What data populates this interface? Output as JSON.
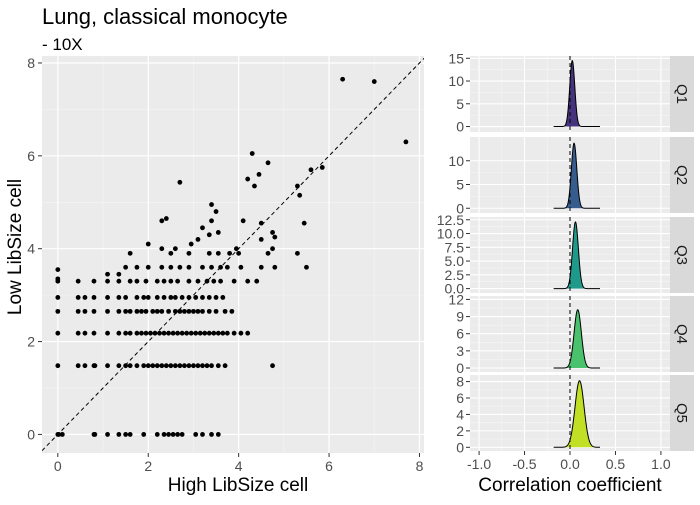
{
  "title": "Lung, classical monocyte",
  "subtitle": "- 10X",
  "chart_data": [
    {
      "type": "scatter",
      "xlabel": "High LibSize cell",
      "ylabel": "Low LibSize cell",
      "xlim": [
        -0.35,
        8.1
      ],
      "ylim": [
        -0.4,
        8.15
      ],
      "xticks": [
        0,
        2,
        4,
        6,
        8
      ],
      "yticks": [
        0,
        2,
        4,
        6,
        8
      ],
      "reference_line": "y = x (dashed)",
      "grid": true,
      "points": [
        [
          0,
          0
        ],
        [
          0.02,
          0
        ],
        [
          0.1,
          0
        ],
        [
          0.8,
          0
        ],
        [
          0.82,
          0
        ],
        [
          1.1,
          0
        ],
        [
          1.35,
          0
        ],
        [
          1.5,
          0
        ],
        [
          1.6,
          0
        ],
        [
          1.9,
          0
        ],
        [
          2.2,
          0
        ],
        [
          2.35,
          0
        ],
        [
          2.45,
          0
        ],
        [
          2.55,
          0
        ],
        [
          2.65,
          0
        ],
        [
          2.75,
          0
        ],
        [
          3.05,
          0
        ],
        [
          3.2,
          0
        ],
        [
          3.4,
          0
        ],
        [
          3.55,
          0
        ],
        [
          0,
          1.48
        ],
        [
          0.45,
          1.48
        ],
        [
          0.6,
          1.48
        ],
        [
          0.8,
          1.48
        ],
        [
          0.82,
          1.48
        ],
        [
          1.1,
          1.48
        ],
        [
          1.35,
          1.48
        ],
        [
          1.5,
          1.48
        ],
        [
          1.6,
          1.48
        ],
        [
          1.75,
          1.48
        ],
        [
          1.9,
          1.48
        ],
        [
          2.0,
          1.48
        ],
        [
          2.1,
          1.48
        ],
        [
          2.2,
          1.48
        ],
        [
          2.3,
          1.48
        ],
        [
          2.4,
          1.48
        ],
        [
          2.5,
          1.48
        ],
        [
          2.6,
          1.48
        ],
        [
          2.7,
          1.48
        ],
        [
          2.8,
          1.48
        ],
        [
          2.9,
          1.48
        ],
        [
          3.0,
          1.48
        ],
        [
          3.1,
          1.48
        ],
        [
          3.2,
          1.48
        ],
        [
          3.3,
          1.48
        ],
        [
          3.4,
          1.48
        ],
        [
          3.55,
          1.48
        ],
        [
          3.7,
          1.48
        ],
        [
          4.75,
          1.48
        ],
        [
          0,
          2.18
        ],
        [
          0.45,
          2.18
        ],
        [
          0.6,
          2.18
        ],
        [
          0.8,
          2.18
        ],
        [
          1.1,
          2.18
        ],
        [
          1.35,
          2.18
        ],
        [
          1.5,
          2.18
        ],
        [
          1.6,
          2.18
        ],
        [
          1.75,
          2.18
        ],
        [
          1.85,
          2.18
        ],
        [
          1.95,
          2.18
        ],
        [
          2.05,
          2.18
        ],
        [
          2.15,
          2.18
        ],
        [
          2.25,
          2.18
        ],
        [
          2.35,
          2.18
        ],
        [
          2.45,
          2.18
        ],
        [
          2.55,
          2.18
        ],
        [
          2.65,
          2.18
        ],
        [
          2.75,
          2.18
        ],
        [
          2.85,
          2.18
        ],
        [
          2.95,
          2.18
        ],
        [
          3.05,
          2.18
        ],
        [
          3.15,
          2.18
        ],
        [
          3.25,
          2.18
        ],
        [
          3.35,
          2.18
        ],
        [
          3.45,
          2.18
        ],
        [
          3.55,
          2.18
        ],
        [
          3.65,
          2.18
        ],
        [
          3.75,
          2.18
        ],
        [
          3.9,
          2.18
        ],
        [
          4.05,
          2.18
        ],
        [
          4.2,
          2.18
        ],
        [
          0,
          2.65
        ],
        [
          0.45,
          2.65
        ],
        [
          0.6,
          2.65
        ],
        [
          0.8,
          2.65
        ],
        [
          1.1,
          2.65
        ],
        [
          1.35,
          2.65
        ],
        [
          1.5,
          2.65
        ],
        [
          1.6,
          2.65
        ],
        [
          1.75,
          2.65
        ],
        [
          1.85,
          2.65
        ],
        [
          1.95,
          2.65
        ],
        [
          2.1,
          2.65
        ],
        [
          2.2,
          2.65
        ],
        [
          2.3,
          2.65
        ],
        [
          2.45,
          2.65
        ],
        [
          2.6,
          2.65
        ],
        [
          2.7,
          2.65
        ],
        [
          2.8,
          2.65
        ],
        [
          2.9,
          2.65
        ],
        [
          3.0,
          2.65
        ],
        [
          3.1,
          2.65
        ],
        [
          3.2,
          2.65
        ],
        [
          3.35,
          2.65
        ],
        [
          3.5,
          2.65
        ],
        [
          3.7,
          2.65
        ],
        [
          3.85,
          2.65
        ],
        [
          0,
          2.95
        ],
        [
          0.45,
          2.95
        ],
        [
          0.6,
          2.95
        ],
        [
          0.8,
          2.95
        ],
        [
          1.1,
          2.95
        ],
        [
          1.35,
          2.95
        ],
        [
          1.5,
          2.95
        ],
        [
          1.75,
          2.95
        ],
        [
          1.9,
          2.95
        ],
        [
          2.0,
          2.95
        ],
        [
          2.2,
          2.95
        ],
        [
          2.35,
          2.95
        ],
        [
          2.5,
          2.95
        ],
        [
          2.6,
          2.95
        ],
        [
          2.75,
          2.95
        ],
        [
          2.9,
          2.95
        ],
        [
          3.05,
          2.95
        ],
        [
          3.2,
          2.95
        ],
        [
          3.35,
          2.95
        ],
        [
          3.5,
          2.95
        ],
        [
          3.65,
          2.95
        ],
        [
          0,
          3.3
        ],
        [
          0.45,
          3.3
        ],
        [
          0.8,
          3.3
        ],
        [
          1.1,
          3.3
        ],
        [
          1.35,
          3.3
        ],
        [
          1.6,
          3.3
        ],
        [
          1.75,
          3.3
        ],
        [
          1.95,
          3.3
        ],
        [
          2.2,
          3.3
        ],
        [
          2.35,
          3.3
        ],
        [
          2.5,
          3.3
        ],
        [
          2.65,
          3.3
        ],
        [
          2.9,
          3.3
        ],
        [
          3.1,
          3.3
        ],
        [
          3.3,
          3.3
        ],
        [
          3.45,
          3.3
        ],
        [
          3.6,
          3.3
        ],
        [
          3.9,
          3.3
        ],
        [
          4.2,
          3.3
        ],
        [
          4.4,
          3.3
        ],
        [
          0,
          3.55
        ],
        [
          0,
          3.35
        ],
        [
          1.1,
          3.45
        ],
        [
          1.35,
          3.45
        ],
        [
          1.5,
          3.6
        ],
        [
          1.75,
          3.6
        ],
        [
          2.0,
          3.6
        ],
        [
          2.3,
          3.6
        ],
        [
          2.5,
          3.6
        ],
        [
          2.7,
          3.6
        ],
        [
          2.9,
          3.6
        ],
        [
          3.2,
          3.6
        ],
        [
          3.4,
          3.6
        ],
        [
          3.6,
          3.6
        ],
        [
          3.75,
          3.6
        ],
        [
          4.05,
          3.6
        ],
        [
          4.5,
          3.6
        ],
        [
          4.8,
          3.6
        ],
        [
          5.5,
          3.6
        ],
        [
          1.6,
          3.9
        ],
        [
          2.5,
          3.9
        ],
        [
          2.9,
          3.9
        ],
        [
          3.35,
          3.9
        ],
        [
          3.55,
          3.9
        ],
        [
          3.8,
          3.9
        ],
        [
          4.0,
          3.9
        ],
        [
          4.65,
          3.9
        ],
        [
          5.3,
          3.9
        ],
        [
          2.0,
          4.1
        ],
        [
          2.3,
          4.0
        ],
        [
          2.6,
          4.0
        ],
        [
          2.95,
          4.1
        ],
        [
          3.1,
          4.2
        ],
        [
          3.35,
          4.3
        ],
        [
          3.55,
          4.35
        ],
        [
          3.95,
          4.0
        ],
        [
          4.5,
          4.2
        ],
        [
          4.75,
          4.0
        ],
        [
          4.8,
          4.25
        ],
        [
          2.3,
          4.6
        ],
        [
          2.4,
          4.65
        ],
        [
          3.2,
          4.45
        ],
        [
          3.4,
          4.6
        ],
        [
          3.5,
          4.8
        ],
        [
          4.1,
          4.6
        ],
        [
          4.5,
          4.55
        ],
        [
          4.75,
          4.35
        ],
        [
          3.4,
          4.95
        ],
        [
          5.45,
          4.55
        ],
        [
          5.35,
          5.15
        ],
        [
          4.45,
          5.6
        ],
        [
          4.3,
          6.05
        ],
        [
          4.2,
          5.5
        ],
        [
          4.35,
          5.35
        ],
        [
          5.3,
          5.35
        ],
        [
          4.65,
          5.85
        ],
        [
          5.6,
          5.7
        ],
        [
          5.85,
          5.75
        ],
        [
          2.7,
          5.43
        ],
        [
          6.3,
          7.65
        ],
        [
          7.0,
          7.6
        ],
        [
          7.7,
          6.3
        ]
      ]
    },
    {
      "type": "area",
      "subtype": "density",
      "xlabel": "Correlation coefficient",
      "xlim": [
        -1.1,
        1.1
      ],
      "xticks": [
        -1.0,
        -0.5,
        0.0,
        0.5,
        1.0
      ],
      "xtick_labels": [
        "-1.0",
        "-0.5",
        "0.0",
        "0.5",
        "1.0"
      ],
      "reference_line": "x = 0 (dashed)",
      "panels": [
        {
          "name": "Q1",
          "color": "#46337e",
          "mean": 0.025,
          "sd": 0.028,
          "peak": 14.5,
          "ylim": [
            -1.2,
            15.5
          ],
          "yticks": [
            0,
            5,
            10,
            15
          ],
          "ytick_labels": [
            "0",
            "5",
            "10",
            "15"
          ]
        },
        {
          "name": "Q2",
          "color": "#365c8d",
          "mean": 0.045,
          "sd": 0.03,
          "peak": 13.7,
          "ylim": [
            -1.0,
            15.0
          ],
          "yticks": [
            0,
            5,
            10
          ],
          "ytick_labels": [
            "0",
            "5",
            "10"
          ]
        },
        {
          "name": "Q3",
          "color": "#1f9a8a",
          "mean": 0.06,
          "sd": 0.032,
          "peak": 12.1,
          "ylim": [
            -0.8,
            13.0
          ],
          "yticks": [
            0.0,
            2.5,
            5.0,
            7.5,
            10.0,
            12.5
          ],
          "ytick_labels": [
            "0.0",
            "2.5",
            "5.0",
            "7.5",
            "10.0",
            "12.5"
          ]
        },
        {
          "name": "Q4",
          "color": "#4ac16d",
          "mean": 0.085,
          "sd": 0.04,
          "peak": 10.2,
          "ylim": [
            -0.7,
            12.6
          ],
          "yticks": [
            0,
            3,
            6,
            9,
            12
          ],
          "ytick_labels": [
            "0",
            "3",
            "6",
            "9",
            "12"
          ]
        },
        {
          "name": "Q5",
          "color": "#c0df25",
          "mean": 0.105,
          "sd": 0.05,
          "peak": 8.1,
          "ylim": [
            -0.45,
            8.8
          ],
          "yticks": [
            0,
            2,
            4,
            6,
            8
          ],
          "ytick_labels": [
            "0",
            "2",
            "4",
            "6",
            "8"
          ]
        }
      ]
    }
  ]
}
